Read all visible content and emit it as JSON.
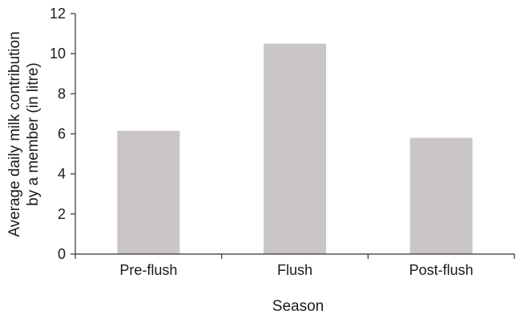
{
  "chart_data": {
    "type": "bar",
    "categories": [
      "Pre-flush",
      "Flush",
      "Post-flush"
    ],
    "values": [
      6.15,
      10.5,
      5.8
    ],
    "xlabel": "Season",
    "ylabel_lines": [
      "Average daily milk contribution",
      "by a member (in litre)"
    ],
    "ylim": [
      0,
      12
    ],
    "yticks": [
      0,
      2,
      4,
      6,
      8,
      10,
      12
    ],
    "grid": false,
    "bar_color": "#cac6c6",
    "axis_color": "#333333"
  }
}
